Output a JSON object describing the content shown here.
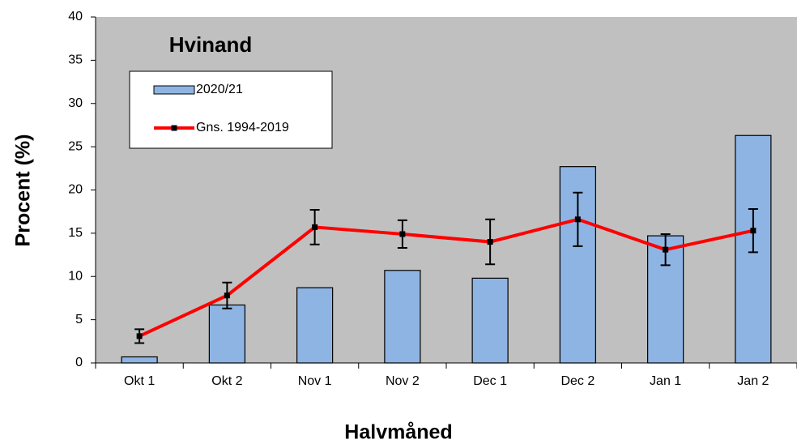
{
  "chart_data": {
    "type": "bar",
    "title": "Hvinand",
    "x_label": "Halvmåned",
    "y_label": "Procent (%)",
    "categories": [
      "Okt 1",
      "Okt 2",
      "Nov 1",
      "Nov 2",
      "Dec 1",
      "Dec 2",
      "Jan 1",
      "Jan 2"
    ],
    "series": [
      {
        "name": "2020/21",
        "type": "bar",
        "color": "#8eb4e3",
        "values": [
          0.7,
          6.7,
          8.7,
          10.7,
          9.8,
          22.7,
          14.7,
          26.3
        ]
      },
      {
        "name": "Gns. 1994-2019",
        "type": "line",
        "color": "#ff0000",
        "values": [
          3.1,
          7.8,
          15.7,
          14.9,
          14.0,
          16.6,
          13.1,
          15.3
        ],
        "errors": [
          0.8,
          1.5,
          2.0,
          1.6,
          2.6,
          3.1,
          1.8,
          2.5
        ]
      }
    ],
    "ylim": [
      0,
      40
    ],
    "yticks": [
      0,
      5,
      10,
      15,
      20,
      25,
      30,
      35,
      40
    ],
    "grid": false,
    "legend": "upper left"
  }
}
